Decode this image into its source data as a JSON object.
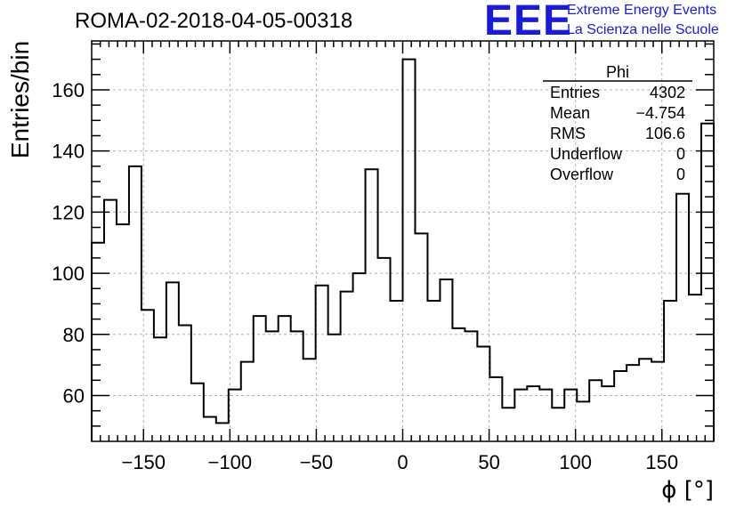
{
  "chart_data": {
    "type": "bar",
    "title": "ROMA-02-2018-04-05-00318",
    "xlabel": "ϕ [°]",
    "ylabel": "Entries/bin",
    "xlim": [
      -180,
      180
    ],
    "ylim": [
      45,
      176
    ],
    "bin_width": 7.2,
    "x_ticks": [
      -150,
      -100,
      -50,
      0,
      50,
      100,
      150
    ],
    "y_ticks": [
      60,
      80,
      100,
      120,
      140,
      160
    ],
    "x_tick_labels": [
      "−150",
      "−100",
      "−50",
      "0",
      "50",
      "100",
      "150"
    ],
    "y_tick_labels": [
      "60",
      "80",
      "100",
      "120",
      "140",
      "160"
    ],
    "grid": true,
    "values": [
      110,
      124,
      116,
      135,
      88,
      79,
      97,
      83,
      64,
      53,
      51,
      62,
      71,
      86,
      81,
      86,
      81,
      72,
      96,
      80,
      94,
      100,
      134,
      105,
      91,
      170,
      113,
      91,
      98,
      82,
      81,
      76,
      66,
      56,
      62,
      63,
      62,
      56,
      62,
      58,
      65,
      63,
      68,
      70,
      72,
      71,
      91,
      126,
      93,
      149
    ],
    "stats": {
      "name": "Phi",
      "rows": [
        {
          "label": "Entries",
          "value": "4302"
        },
        {
          "label": "Mean",
          "value": "−4.754"
        },
        {
          "label": "RMS",
          "value": "106.6"
        },
        {
          "label": "Underflow",
          "value": "0"
        },
        {
          "label": "Overflow",
          "value": "0"
        }
      ]
    }
  },
  "logo": {
    "text": "EEE",
    "line1": "Extreme Energy Events",
    "line2": "La Scienza nelle Scuole",
    "color": "#1a1adc"
  }
}
